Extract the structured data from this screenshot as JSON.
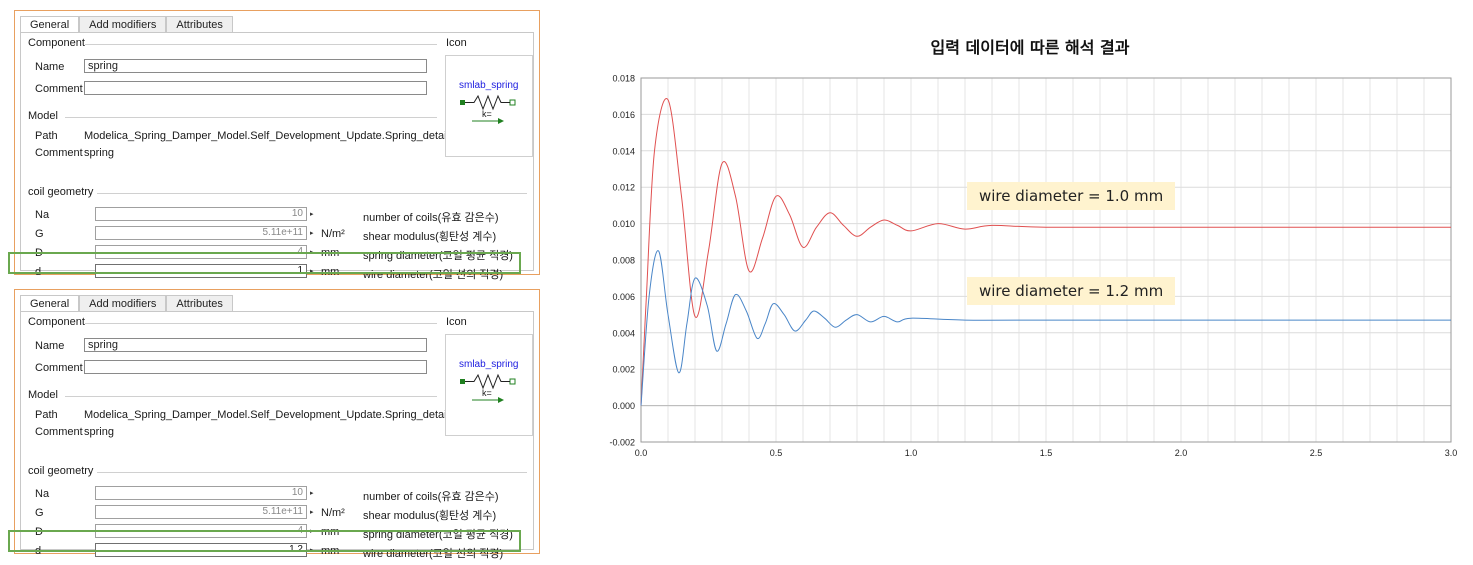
{
  "panels": [
    {
      "tabs": [
        "General",
        "Add modifiers",
        "Attributes"
      ],
      "component_label": "Component",
      "icon_label": "Icon",
      "name_label": "Name",
      "name_value": "spring",
      "comment_label": "Comment",
      "comment_value": "",
      "model_label": "Model",
      "path_label": "Path",
      "path_value": "Modelica_Spring_Damper_Model.Self_Development_Update.Spring_detail",
      "model_comment_label": "Comment",
      "model_comment_value": "spring",
      "icon_name": "smlab_spring",
      "icon_param": "k=",
      "coil_label": "coil geometry",
      "params": [
        {
          "name": "Na",
          "value": "10",
          "unit": "",
          "desc": "number of coils(유효 감은수)"
        },
        {
          "name": "G",
          "value": "5.11e+11",
          "unit": "N/m²",
          "desc": "shear modulus(횡탄성 계수)"
        },
        {
          "name": "D",
          "value": "4",
          "unit": "mm",
          "desc": "spring diameter(코일 평균 직경)"
        },
        {
          "name": "d",
          "value": "1",
          "unit": "mm",
          "desc": "wire diameter(코일 선의 직경)"
        }
      ]
    },
    {
      "tabs": [
        "General",
        "Add modifiers",
        "Attributes"
      ],
      "component_label": "Component",
      "icon_label": "Icon",
      "name_label": "Name",
      "name_value": "spring",
      "comment_label": "Comment",
      "comment_value": "",
      "model_label": "Model",
      "path_label": "Path",
      "path_value": "Modelica_Spring_Damper_Model.Self_Development_Update.Spring_detail",
      "model_comment_label": "Comment",
      "model_comment_value": "spring",
      "icon_name": "smlab_spring",
      "icon_param": "k=",
      "coil_label": "coil geometry",
      "params": [
        {
          "name": "Na",
          "value": "10",
          "unit": "",
          "desc": "number of coils(유효 감은수)"
        },
        {
          "name": "G",
          "value": "5.11e+11",
          "unit": "N/m²",
          "desc": "shear modulus(횡탄성 계수)"
        },
        {
          "name": "D",
          "value": "4",
          "unit": "mm",
          "desc": "spring diameter(코일 평균 직경)"
        },
        {
          "name": "d",
          "value": "1.2",
          "unit": "mm",
          "desc": "wire diameter(코일 선의 직경)"
        }
      ]
    }
  ],
  "chart_data": {
    "type": "line",
    "title": "입력 데이터에 따른 해석 결과",
    "xlim": [
      0,
      3.0
    ],
    "ylim": [
      -0.002,
      0.018
    ],
    "x_ticks": [
      "0.0",
      "0.5",
      "1.0",
      "1.5",
      "2.0",
      "2.5",
      "3.0"
    ],
    "y_ticks": [
      "-0.002",
      "0.000",
      "0.002",
      "0.004",
      "0.006",
      "0.008",
      "0.010",
      "0.012",
      "0.014",
      "0.016",
      "0.018"
    ],
    "grid": true,
    "series": [
      {
        "color": "#e05050",
        "annotation": "wire diameter = 1.0 mm",
        "points": [
          [
            0,
            0
          ],
          [
            0.02,
            0.006
          ],
          [
            0.05,
            0.014
          ],
          [
            0.1,
            0.0168
          ],
          [
            0.15,
            0.0115
          ],
          [
            0.2,
            0.0049
          ],
          [
            0.25,
            0.0085
          ],
          [
            0.3,
            0.0133
          ],
          [
            0.35,
            0.0115
          ],
          [
            0.4,
            0.0074
          ],
          [
            0.45,
            0.0092
          ],
          [
            0.5,
            0.0115
          ],
          [
            0.55,
            0.0105
          ],
          [
            0.6,
            0.0087
          ],
          [
            0.65,
            0.0098
          ],
          [
            0.7,
            0.0106
          ],
          [
            0.75,
            0.0099
          ],
          [
            0.8,
            0.0093
          ],
          [
            0.85,
            0.0098
          ],
          [
            0.9,
            0.0102
          ],
          [
            0.95,
            0.0099
          ],
          [
            1.0,
            0.0096
          ],
          [
            1.1,
            0.01
          ],
          [
            1.2,
            0.0097
          ],
          [
            1.3,
            0.0099
          ],
          [
            1.5,
            0.0098
          ],
          [
            2.0,
            0.0098
          ],
          [
            3.0,
            0.0098
          ]
        ]
      },
      {
        "color": "#4a86c8",
        "annotation": "wire diameter = 1.2 mm",
        "points": [
          [
            0,
            0
          ],
          [
            0.03,
            0.006
          ],
          [
            0.065,
            0.0085
          ],
          [
            0.1,
            0.005
          ],
          [
            0.14,
            0.0018
          ],
          [
            0.17,
            0.0045
          ],
          [
            0.2,
            0.007
          ],
          [
            0.245,
            0.0055
          ],
          [
            0.28,
            0.003
          ],
          [
            0.315,
            0.0045
          ],
          [
            0.35,
            0.0061
          ],
          [
            0.39,
            0.0052
          ],
          [
            0.43,
            0.0037
          ],
          [
            0.46,
            0.0045
          ],
          [
            0.49,
            0.0056
          ],
          [
            0.53,
            0.005
          ],
          [
            0.57,
            0.0041
          ],
          [
            0.61,
            0.0047
          ],
          [
            0.64,
            0.0052
          ],
          [
            0.68,
            0.0048
          ],
          [
            0.72,
            0.0043
          ],
          [
            0.76,
            0.0047
          ],
          [
            0.8,
            0.005
          ],
          [
            0.85,
            0.0046
          ],
          [
            0.9,
            0.0049
          ],
          [
            0.95,
            0.0046
          ],
          [
            1.0,
            0.0048
          ],
          [
            1.2,
            0.0047
          ],
          [
            1.5,
            0.0047
          ],
          [
            3.0,
            0.0047
          ]
        ]
      }
    ]
  }
}
